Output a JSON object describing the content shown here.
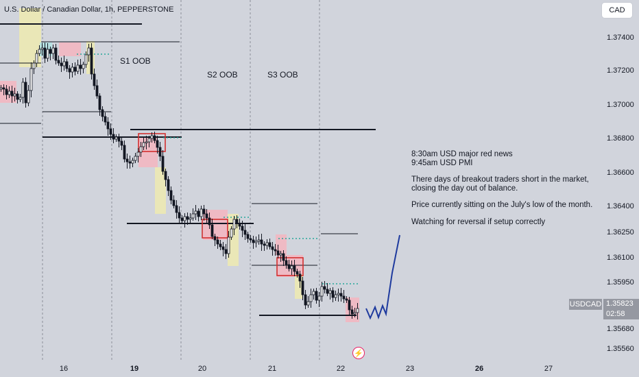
{
  "symbol_title": "U.S. Dollar / Canadian Dollar, 1h, PEPPERSTONE",
  "currency_button": "CAD",
  "price_scale": [
    "1.37400",
    "1.37200",
    "1.37000",
    "1.36800",
    "1.36600",
    "1.36400",
    "1.36250",
    "1.36100",
    "1.35950",
    "1.35680",
    "1.35560"
  ],
  "date_scale": [
    {
      "label": "16",
      "bold": false
    },
    {
      "label": "19",
      "bold": true
    },
    {
      "label": "20",
      "bold": false
    },
    {
      "label": "21",
      "bold": false
    },
    {
      "label": "22",
      "bold": false
    },
    {
      "label": "23",
      "bold": false
    },
    {
      "label": "26",
      "bold": true
    },
    {
      "label": "27",
      "bold": false
    }
  ],
  "session_labels": [
    "S1 OOB",
    "S2 OOB",
    "S3 OOB"
  ],
  "annotation": {
    "line1": "8:30am USD major red news",
    "line2": "9:45am USD PMI",
    "line3": "There days of breakout traders short in the market, closing the day out of balance.",
    "line4": "Price currently sitting on the July's low of the month.",
    "line5": "Watching for reversal if setup correctly"
  },
  "symbol_badge": "USDCAD",
  "last_price": "1.35823",
  "countdown": "02:58",
  "colors": {
    "background": "#d1d4dc",
    "candle": "#131722",
    "zone_red": "#f5b5c0",
    "zone_yellow": "#eeeab0",
    "zone_cyan": "#b3e3e3",
    "box_red": "#d32f2f",
    "dotted_green": "#26a69a",
    "projection_blue": "#1e3a9e"
  },
  "icons": {
    "flash": "flash-icon"
  }
}
